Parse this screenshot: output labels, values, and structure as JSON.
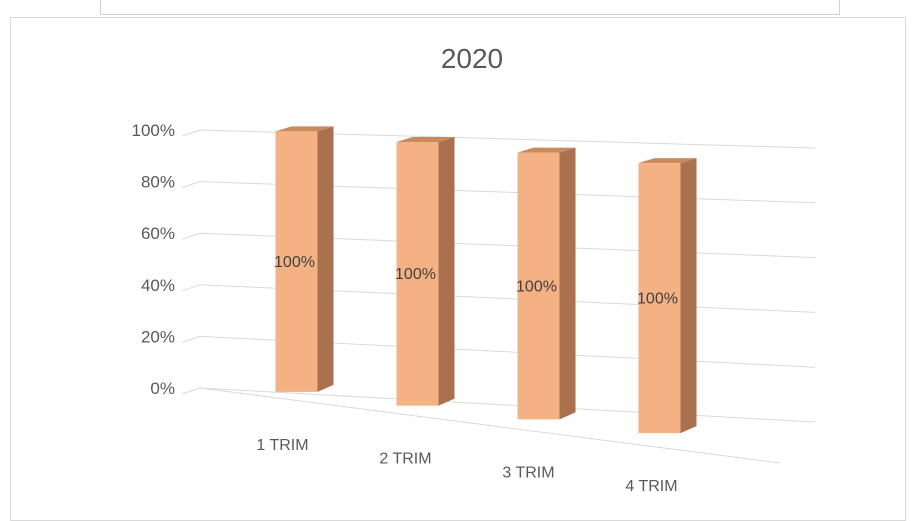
{
  "chart_data": {
    "type": "bar",
    "title": "2020",
    "categories": [
      "1 TRIM",
      "2 TRIM",
      "3 TRIM",
      "4 TRIM"
    ],
    "values": [
      1.0,
      1.0,
      1.0,
      1.0
    ],
    "data_labels": [
      "100%",
      "100%",
      "100%",
      "100%"
    ],
    "y_ticks": [
      "0%",
      "20%",
      "40%",
      "60%",
      "80%",
      "100%"
    ],
    "ylim": [
      0,
      1
    ],
    "grid": true,
    "legend": "none",
    "three_d": true,
    "colors": {
      "front": "#F4B183",
      "side": "#A9714E",
      "top": "#C98A60",
      "edge": "#D99A70"
    }
  }
}
